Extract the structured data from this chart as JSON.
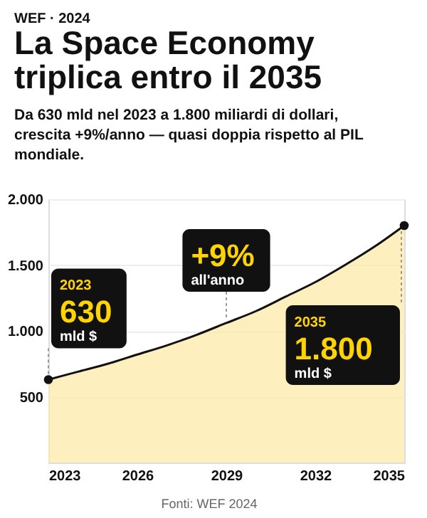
{
  "chart_data": {
    "type": "area",
    "title": "La Space Economy triplica entro il 2035",
    "subtitle": "Da 630 mld nel 2023 a 1.800 miliardi di dollari, crescita +9%/anno — quasi doppia rispetto al PIL mondiale.",
    "x": [
      2023,
      2024,
      2025,
      2026,
      2027,
      2028,
      2029,
      2030,
      2031,
      2032,
      2033,
      2034,
      2035
    ],
    "series": [
      {
        "color": "#fdeaa2",
        "values": [
          630,
          690,
          750,
          820,
          890,
          970,
          1060,
          1150,
          1260,
          1370,
          1500,
          1640,
          1800
        ]
      },
      {
        "type": "scatter",
        "color": "#111111",
        "x": [
          2023,
          2035
        ],
        "values": [
          630,
          1800
        ]
      }
    ],
    "xlim": [
      2023,
      2035
    ],
    "xticks": [
      2023,
      2026,
      2029,
      2032,
      2035
    ],
    "ylim": [
      0,
      2000
    ],
    "yticks": [
      {
        "value": 500,
        "label": "500"
      },
      {
        "value": 1000,
        "label": "1.000"
      },
      {
        "value": 1500,
        "label": "1.500"
      },
      {
        "value": 2000,
        "label": "2.000"
      }
    ],
    "grid": "y",
    "annotations": [
      "WEF · 2024",
      "Fonti: WEF 2024",
      {
        "text": "2023\n630\nmld $",
        "x": 2023,
        "y": 630
      },
      {
        "text": "+9%\nall'anno",
        "x": 2029,
        "y": 1060
      },
      {
        "text": "2035\n1.800\nmld $",
        "x": 2035,
        "y": 1800
      }
    ]
  }
}
